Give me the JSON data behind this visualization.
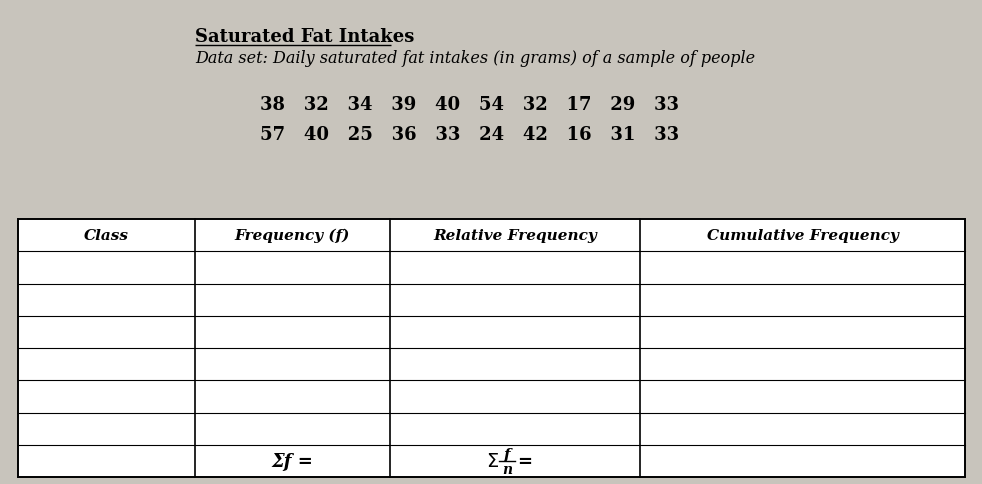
{
  "title": "Saturated Fat Intakes",
  "subtitle": "Data set: Daily saturated fat intakes (in grams) of a sample of people",
  "data_row1": "38   32   34   39   40   54   32   17   29   33",
  "data_row2": "57   40   25   36   33   24   42   16   31   33",
  "col_headers": [
    "Class",
    "Frequency (f)",
    "Relative Frequency",
    "Cumulative Frequency"
  ],
  "num_data_rows": 6,
  "footer_col2": "Σf =",
  "bg_color": "#c8c4bc",
  "table_bg": "white"
}
